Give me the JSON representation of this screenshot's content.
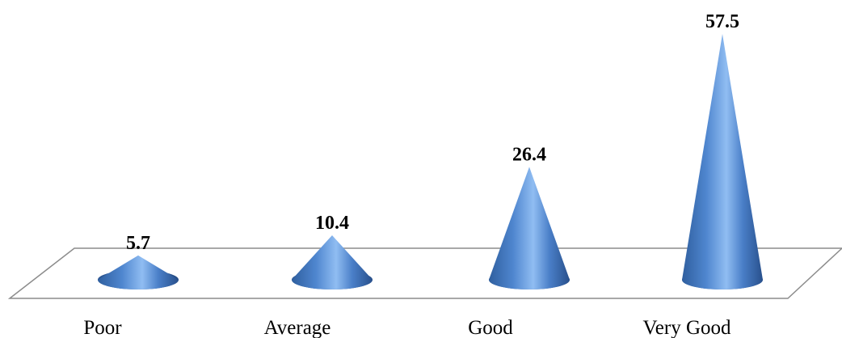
{
  "chart_data": {
    "type": "bar",
    "bar_shape": "cone",
    "categories": [
      "Poor",
      "Average",
      "Good",
      "Very Good"
    ],
    "values": [
      5.7,
      10.4,
      26.4,
      57.5
    ],
    "data_labels": [
      "5.7",
      "10.4",
      "26.4",
      "57.5"
    ],
    "ylim": [
      0,
      57.5
    ],
    "grid": false,
    "legend": "none"
  },
  "colors": {
    "cone_light": "#8fbbf0",
    "cone_mid": "#4a7fc8",
    "cone_dark": "#2a5595",
    "floor_stroke": "#8c8c8c"
  }
}
